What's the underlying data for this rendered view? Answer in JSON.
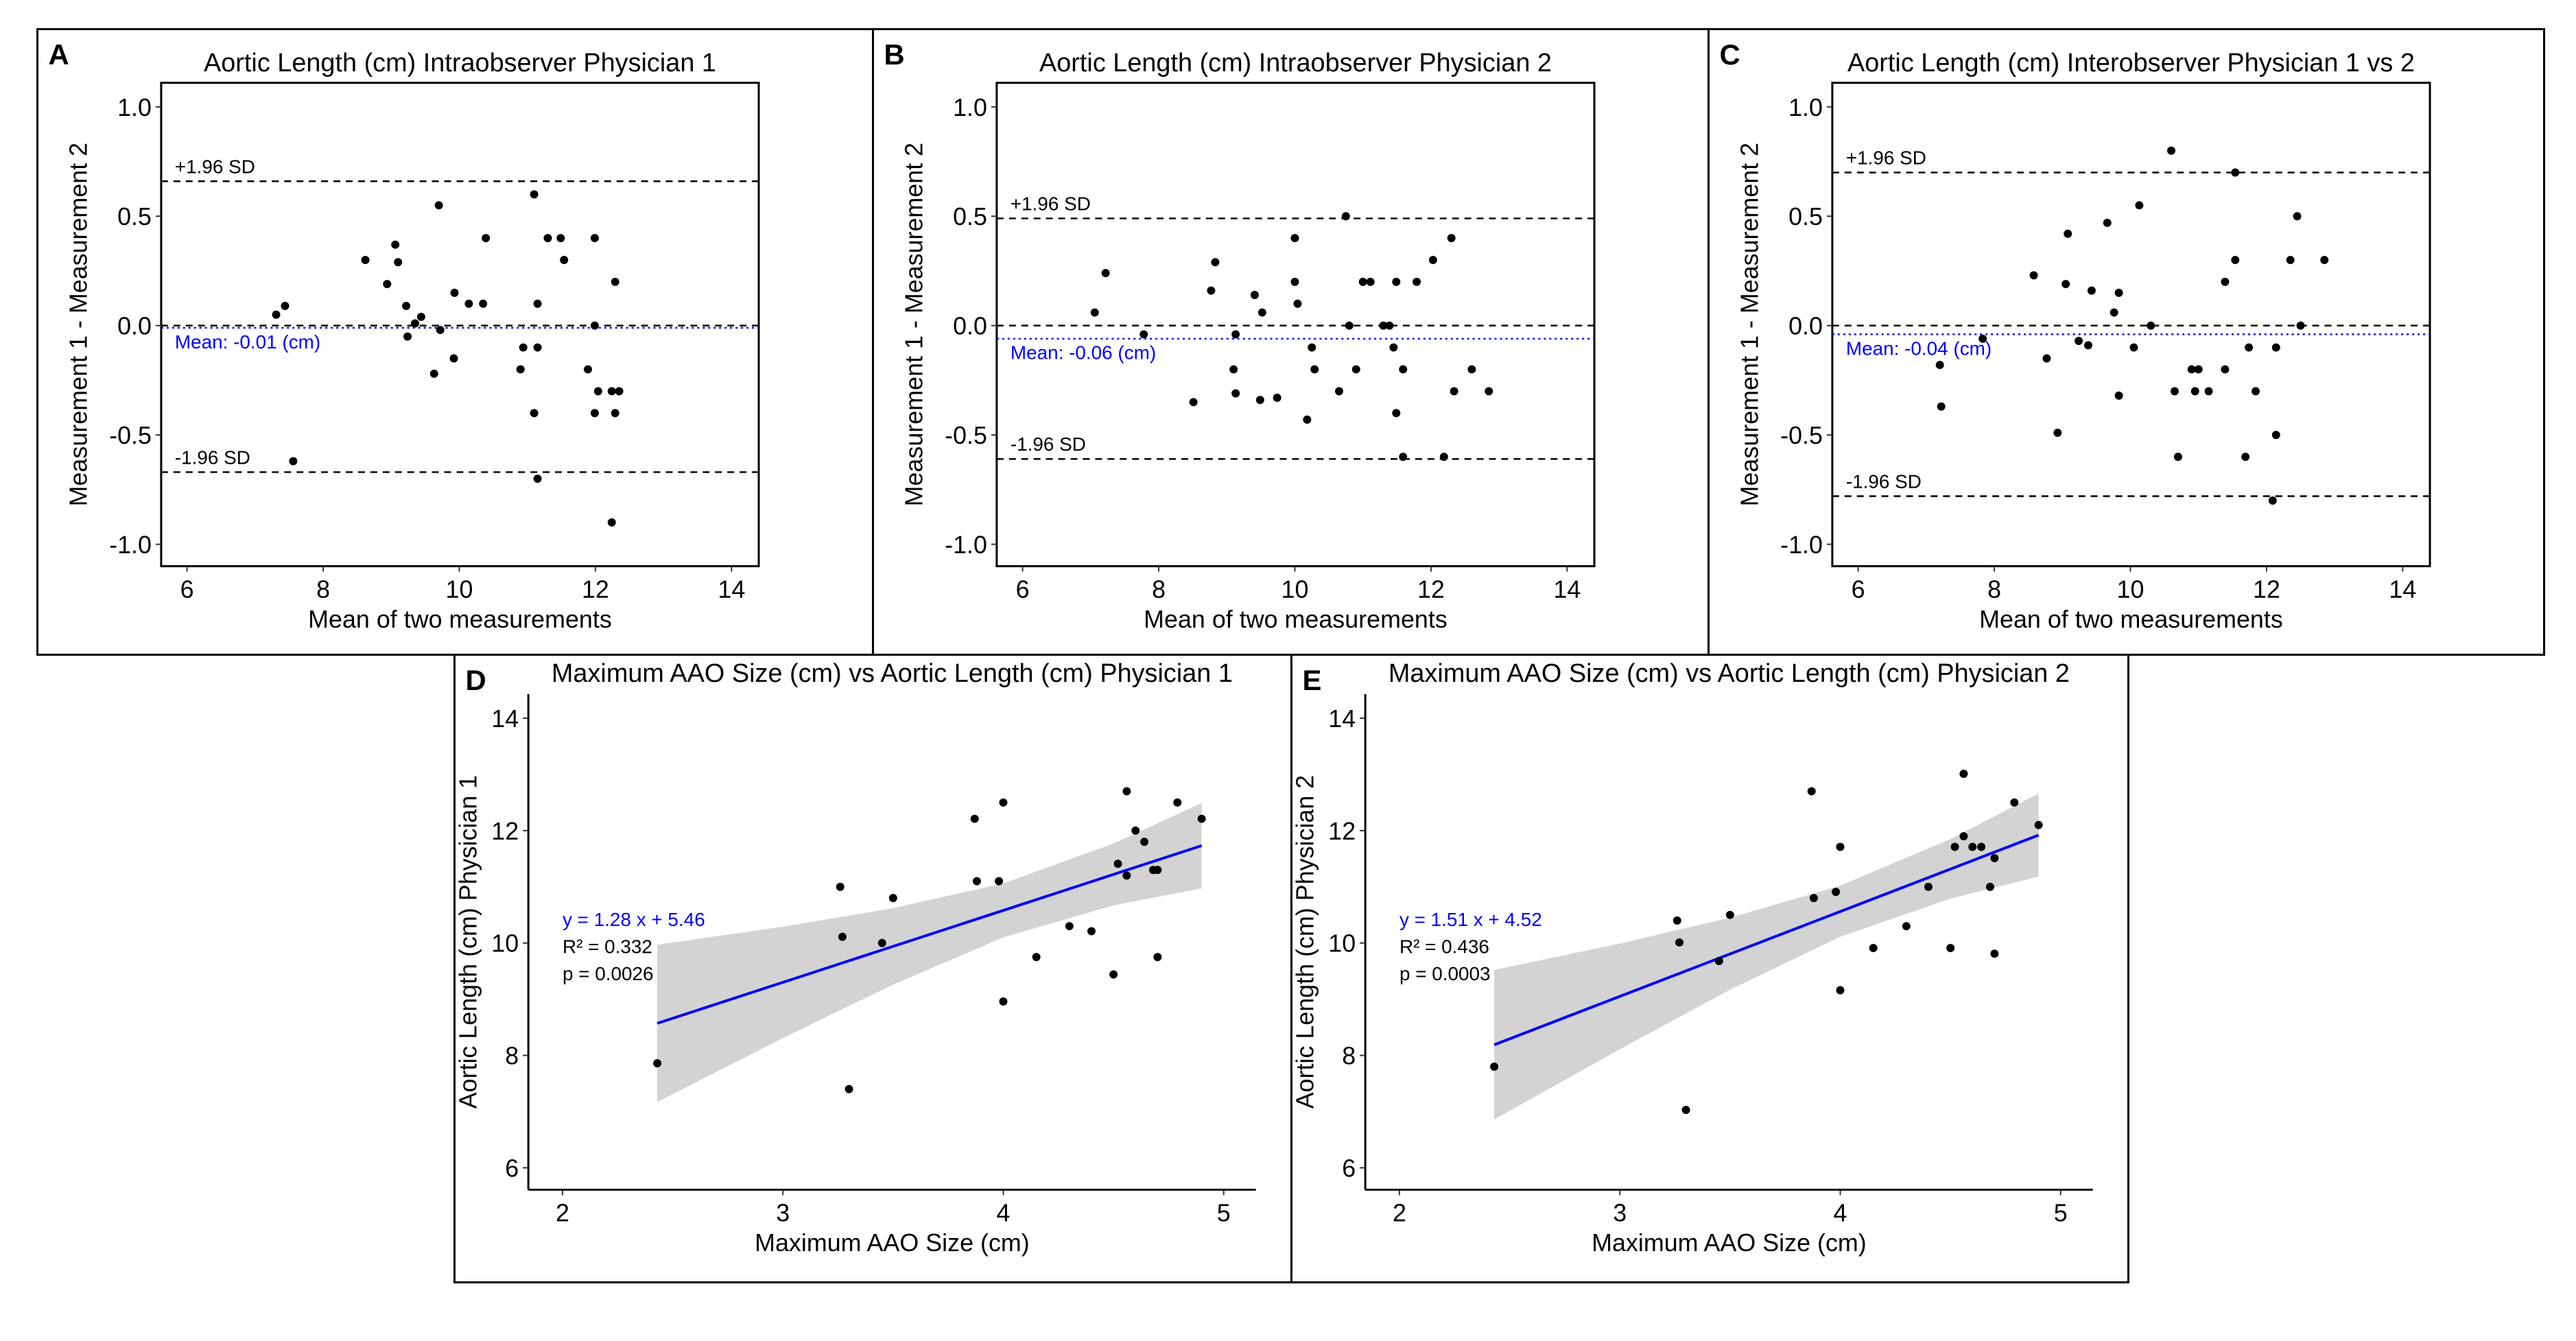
{
  "chart_data": [
    {
      "panel_label": "A",
      "type": "scatter",
      "title": "Aortic Length (cm) Intraobserver Physician 1",
      "xlabel": "Mean of two measurements",
      "ylabel": "Measurement 1 - Measurement 2",
      "xlim": [
        5.62,
        14.4
      ],
      "ylim": [
        -1.1,
        1.11
      ],
      "xticks": [
        "6",
        "8",
        "10",
        "12",
        "14"
      ],
      "yticks": [
        "-1.0",
        "-0.5",
        "0.0",
        "0.5",
        "1.0"
      ],
      "grid": false,
      "reference_lines": [
        {
          "label": "+1.96 SD",
          "y": 0.66,
          "style": "dashed",
          "color": "#000000"
        },
        {
          "label": "",
          "y": 0.0,
          "style": "dashed",
          "color": "#000000"
        },
        {
          "label": "Mean: -0.01 (cm)",
          "y": -0.01,
          "style": "dotted",
          "color": "#0000FF"
        },
        {
          "label": "-1.96 SD",
          "y": -0.67,
          "style": "dashed",
          "color": "#000000"
        }
      ],
      "points": [
        [
          7.31,
          0.05
        ],
        [
          7.44,
          0.09
        ],
        [
          7.56,
          -0.62
        ],
        [
          8.62,
          0.3
        ],
        [
          8.94,
          0.19
        ],
        [
          9.06,
          0.37
        ],
        [
          9.1,
          0.29
        ],
        [
          9.22,
          0.09
        ],
        [
          9.24,
          -0.05
        ],
        [
          9.35,
          0.01
        ],
        [
          9.44,
          0.04
        ],
        [
          9.63,
          -0.22
        ],
        [
          9.7,
          0.55
        ],
        [
          9.72,
          -0.02
        ],
        [
          9.92,
          -0.15
        ],
        [
          9.93,
          0.15
        ],
        [
          10.14,
          0.1
        ],
        [
          10.35,
          0.1
        ],
        [
          10.39,
          0.4
        ],
        [
          10.9,
          -0.2
        ],
        [
          10.94,
          -0.1
        ],
        [
          11.1,
          0.6
        ],
        [
          11.1,
          -0.4
        ],
        [
          11.15,
          0.1
        ],
        [
          11.15,
          -0.1
        ],
        [
          11.15,
          -0.7
        ],
        [
          11.3,
          0.4
        ],
        [
          11.49,
          0.4
        ],
        [
          11.54,
          0.3
        ],
        [
          11.89,
          -0.2
        ],
        [
          11.99,
          0.4
        ],
        [
          11.99,
          0.0
        ],
        [
          11.99,
          -0.4
        ],
        [
          12.04,
          -0.3
        ],
        [
          12.24,
          -0.3
        ],
        [
          12.24,
          -0.9
        ],
        [
          12.29,
          0.2
        ],
        [
          12.29,
          -0.4
        ],
        [
          12.35,
          -0.3
        ]
      ]
    },
    {
      "panel_label": "B",
      "type": "scatter",
      "title": "Aortic Length (cm) Intraobserver Physician 2",
      "xlabel": "Mean of two measurements",
      "ylabel": "Measurement 1 - Measurement 2",
      "xlim": [
        5.62,
        14.4
      ],
      "ylim": [
        -1.1,
        1.11
      ],
      "xticks": [
        "6",
        "8",
        "10",
        "12",
        "14"
      ],
      "yticks": [
        "-1.0",
        "-0.5",
        "0.0",
        "0.5",
        "1.0"
      ],
      "grid": false,
      "reference_lines": [
        {
          "label": "+1.96 SD",
          "y": 0.49,
          "style": "dashed",
          "color": "#000000"
        },
        {
          "label": "",
          "y": 0.0,
          "style": "dashed",
          "color": "#000000"
        },
        {
          "label": "Mean: -0.06 (cm)",
          "y": -0.06,
          "style": "dotted",
          "color": "#0000FF"
        },
        {
          "label": "-1.96 SD",
          "y": -0.61,
          "style": "dashed",
          "color": "#000000"
        }
      ],
      "points": [
        [
          7.06,
          0.06
        ],
        [
          7.22,
          0.24
        ],
        [
          7.78,
          -0.04
        ],
        [
          8.51,
          -0.35
        ],
        [
          8.77,
          0.16
        ],
        [
          8.83,
          0.29
        ],
        [
          9.1,
          -0.2
        ],
        [
          9.13,
          -0.04
        ],
        [
          9.13,
          -0.31
        ],
        [
          9.41,
          0.14
        ],
        [
          9.49,
          -0.34
        ],
        [
          9.52,
          0.06
        ],
        [
          9.74,
          -0.33
        ],
        [
          10.0,
          0.4
        ],
        [
          10.0,
          0.2
        ],
        [
          10.04,
          0.1
        ],
        [
          10.18,
          -0.43
        ],
        [
          10.25,
          -0.1
        ],
        [
          10.29,
          -0.2
        ],
        [
          10.65,
          -0.3
        ],
        [
          10.75,
          0.5
        ],
        [
          10.8,
          0.0
        ],
        [
          10.9,
          -0.2
        ],
        [
          11.0,
          0.2
        ],
        [
          11.11,
          0.2
        ],
        [
          11.3,
          0.0
        ],
        [
          11.39,
          0.0
        ],
        [
          11.45,
          -0.1
        ],
        [
          11.49,
          0.2
        ],
        [
          11.49,
          -0.4
        ],
        [
          11.59,
          -0.2
        ],
        [
          11.59,
          -0.6
        ],
        [
          11.79,
          0.2
        ],
        [
          12.03,
          0.3
        ],
        [
          12.19,
          -0.6
        ],
        [
          12.3,
          0.4
        ],
        [
          12.34,
          -0.3
        ],
        [
          12.6,
          -0.2
        ],
        [
          12.85,
          -0.3
        ]
      ]
    },
    {
      "panel_label": "C",
      "type": "scatter",
      "title": "Aortic Length (cm) Interobserver Physician 1 vs 2",
      "xlabel": "Mean of two measurements",
      "ylabel": "Measurement 1 - Measurement 2",
      "xlim": [
        5.62,
        14.4
      ],
      "ylim": [
        -1.1,
        1.11
      ],
      "xticks": [
        "6",
        "8",
        "10",
        "12",
        "14"
      ],
      "yticks": [
        "-1.0",
        "-0.5",
        "0.0",
        "0.5",
        "1.0"
      ],
      "grid": false,
      "reference_lines": [
        {
          "label": "+1.96 SD",
          "y": 0.7,
          "style": "dashed",
          "color": "#000000"
        },
        {
          "label": "",
          "y": 0.0,
          "style": "dashed",
          "color": "#000000"
        },
        {
          "label": "Mean: -0.04 (cm)",
          "y": -0.04,
          "style": "dotted",
          "color": "#0000FF"
        },
        {
          "label": "-1.96 SD",
          "y": -0.78,
          "style": "dashed",
          "color": "#000000"
        }
      ],
      "points": [
        [
          7.2,
          -0.18
        ],
        [
          7.22,
          -0.37
        ],
        [
          7.83,
          -0.06
        ],
        [
          8.58,
          0.23
        ],
        [
          8.77,
          -0.15
        ],
        [
          8.93,
          -0.49
        ],
        [
          9.05,
          0.19
        ],
        [
          9.08,
          0.42
        ],
        [
          9.24,
          -0.07
        ],
        [
          9.38,
          -0.09
        ],
        [
          9.43,
          0.16
        ],
        [
          9.66,
          0.47
        ],
        [
          9.76,
          0.06
        ],
        [
          9.83,
          0.15
        ],
        [
          9.83,
          -0.32
        ],
        [
          10.05,
          -0.1
        ],
        [
          10.13,
          0.55
        ],
        [
          10.3,
          0.0
        ],
        [
          10.6,
          0.8
        ],
        [
          10.65,
          -0.3
        ],
        [
          10.7,
          -0.6
        ],
        [
          10.9,
          -0.2
        ],
        [
          10.95,
          -0.3
        ],
        [
          11.0,
          -0.2
        ],
        [
          11.15,
          -0.3
        ],
        [
          11.39,
          0.2
        ],
        [
          11.39,
          -0.2
        ],
        [
          11.54,
          0.7
        ],
        [
          11.54,
          0.3
        ],
        [
          11.69,
          -0.6
        ],
        [
          11.74,
          -0.1
        ],
        [
          11.84,
          -0.3
        ],
        [
          12.09,
          -0.8
        ],
        [
          12.14,
          -0.1
        ],
        [
          12.14,
          -0.5
        ],
        [
          12.35,
          0.3
        ],
        [
          12.45,
          0.5
        ],
        [
          12.5,
          0.0
        ],
        [
          12.85,
          0.3
        ]
      ]
    },
    {
      "panel_label": "D",
      "type": "scatter",
      "title": "Maximum AAO Size (cm) vs Aortic Length (cm) Physician 1",
      "xlabel": "Maximum AAO Size (cm)",
      "ylabel": "Aortic Length (cm) Physician 1",
      "xlim": [
        1.845,
        5.146
      ],
      "ylim": [
        5.61,
        14.43
      ],
      "xticks": [
        "2",
        "3",
        "4",
        "5"
      ],
      "yticks": [
        "6",
        "8",
        "10",
        "12",
        "14"
      ],
      "grid": false,
      "annotation": {
        "equation": "y =  1.28 x + 5.46",
        "r2": "R² = 0.332",
        "p": "p = 0.0026"
      },
      "regression": {
        "slope": 1.28,
        "intercept": 5.46,
        "x_range": [
          2.43,
          4.9
        ],
        "color": "#0000FF"
      },
      "confidence_band": {
        "color": "#D3D3D3",
        "x": [
          2.43,
          3.0,
          3.5,
          4.0,
          4.5,
          4.9
        ],
        "lower": [
          7.17,
          8.31,
          9.26,
          10.1,
          10.67,
          10.97
        ],
        "upper": [
          9.97,
          10.29,
          10.62,
          11.06,
          11.77,
          12.49
        ]
      },
      "points": [
        [
          2.43,
          7.86
        ],
        [
          3.26,
          11.0
        ],
        [
          3.27,
          10.11
        ],
        [
          3.3,
          7.4
        ],
        [
          3.45,
          10.0
        ],
        [
          3.5,
          10.8
        ],
        [
          3.87,
          12.21
        ],
        [
          3.88,
          11.1
        ],
        [
          3.98,
          11.1
        ],
        [
          4.0,
          12.5
        ],
        [
          4.0,
          8.96
        ],
        [
          4.15,
          9.75
        ],
        [
          4.3,
          10.3
        ],
        [
          4.4,
          10.21
        ],
        [
          4.5,
          9.44
        ],
        [
          4.52,
          11.41
        ],
        [
          4.56,
          12.7
        ],
        [
          4.56,
          11.2
        ],
        [
          4.6,
          12.0
        ],
        [
          4.64,
          11.8
        ],
        [
          4.68,
          11.3
        ],
        [
          4.7,
          11.3
        ],
        [
          4.7,
          9.75
        ],
        [
          4.79,
          12.5
        ],
        [
          4.9,
          12.21
        ]
      ]
    },
    {
      "panel_label": "E",
      "type": "scatter",
      "title": "Maximum AAO Size (cm) vs Aortic Length (cm) Physician 2",
      "xlabel": "Maximum AAO Size (cm)",
      "ylabel": "Aortic Length (cm) Physician 2",
      "xlim": [
        1.845,
        5.146
      ],
      "ylim": [
        5.61,
        14.43
      ],
      "xticks": [
        "2",
        "3",
        "4",
        "5"
      ],
      "yticks": [
        "6",
        "8",
        "10",
        "12",
        "14"
      ],
      "grid": false,
      "annotation": {
        "equation": "y =  1.51 x + 4.52",
        "r2": "R² = 0.436",
        "p": "p = 0.0003"
      },
      "regression": {
        "slope": 1.51,
        "intercept": 4.52,
        "x_range": [
          2.43,
          4.9
        ],
        "color": "#0000FF"
      },
      "confidence_band": {
        "color": "#D3D3D3",
        "x": [
          2.43,
          3.0,
          3.5,
          4.0,
          4.5,
          4.9
        ],
        "lower": [
          6.86,
          8.11,
          9.17,
          10.11,
          10.79,
          11.18
        ],
        "upper": [
          9.52,
          9.99,
          10.45,
          11.02,
          11.85,
          12.66
        ]
      },
      "points": [
        [
          2.43,
          7.8
        ],
        [
          3.26,
          10.4
        ],
        [
          3.27,
          10.01
        ],
        [
          3.3,
          7.03
        ],
        [
          3.45,
          9.68
        ],
        [
          3.5,
          10.5
        ],
        [
          3.87,
          12.7
        ],
        [
          3.88,
          10.8
        ],
        [
          3.98,
          10.91
        ],
        [
          4.0,
          11.71
        ],
        [
          4.0,
          9.16
        ],
        [
          4.15,
          9.91
        ],
        [
          4.3,
          10.3
        ],
        [
          4.4,
          11.0
        ],
        [
          4.5,
          9.91
        ],
        [
          4.52,
          11.71
        ],
        [
          4.56,
          13.01
        ],
        [
          4.56,
          11.9
        ],
        [
          4.6,
          11.71
        ],
        [
          4.64,
          11.71
        ],
        [
          4.68,
          11.0
        ],
        [
          4.7,
          11.51
        ],
        [
          4.7,
          9.81
        ],
        [
          4.79,
          12.5
        ],
        [
          4.9,
          12.1
        ]
      ]
    }
  ]
}
